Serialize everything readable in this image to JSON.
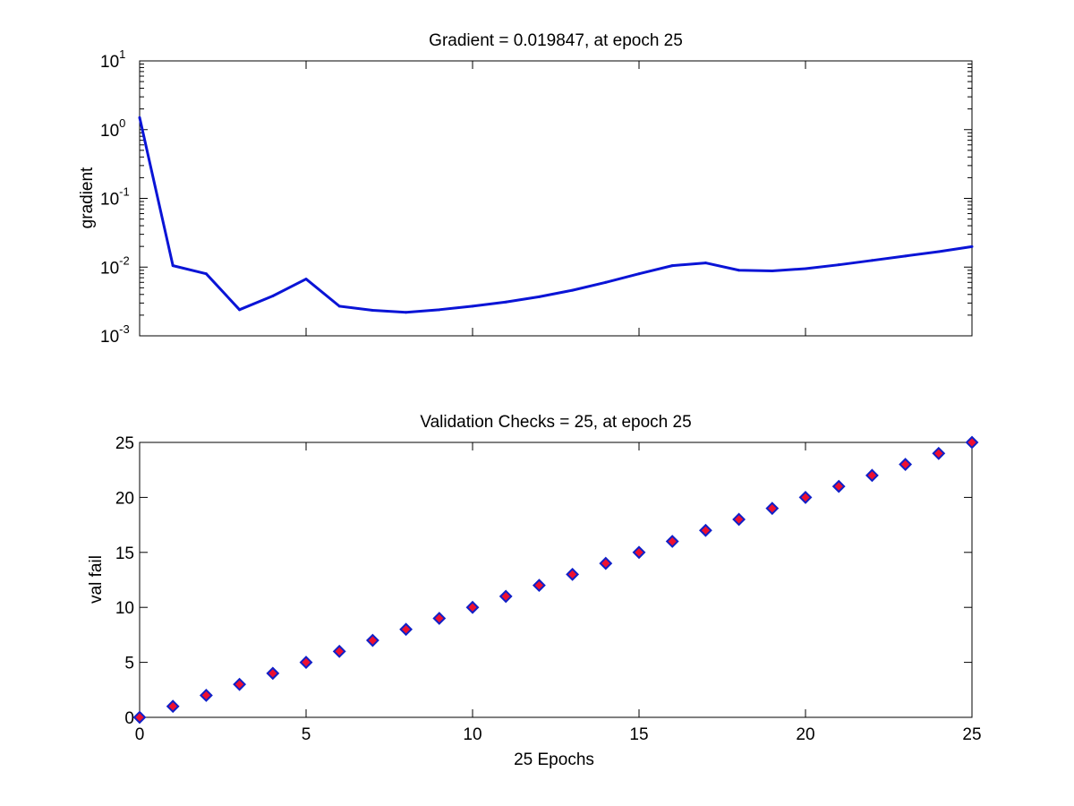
{
  "chart_data": [
    {
      "type": "line",
      "title": "Gradient = 0.019847, at epoch 25",
      "xlabel": "",
      "ylabel": "gradient",
      "xlim": [
        0,
        25
      ],
      "ylim": [
        0.001,
        10
      ],
      "yscale": "log",
      "x_ticks": [
        0,
        5,
        10,
        15,
        20
      ],
      "x_tick_labels_visible": false,
      "y_ticks": [
        {
          "base": "10",
          "exp": "-3"
        },
        {
          "base": "10",
          "exp": "-2"
        },
        {
          "base": "10",
          "exp": "-1"
        },
        {
          "base": "10",
          "exp": "0"
        },
        {
          "base": "10",
          "exp": "1"
        }
      ],
      "grid": false,
      "series": [
        {
          "color": "#0a14d6",
          "x": [
            0,
            1,
            2,
            3,
            4,
            5,
            6,
            7,
            8,
            9,
            10,
            11,
            12,
            13,
            14,
            15,
            16,
            17,
            18,
            19,
            20,
            21,
            22,
            23,
            24,
            25
          ],
          "y": [
            1.5,
            0.0105,
            0.008,
            0.0024,
            0.0038,
            0.0067,
            0.0027,
            0.00235,
            0.0022,
            0.0024,
            0.0027,
            0.0031,
            0.0037,
            0.0046,
            0.006,
            0.008,
            0.0105,
            0.0115,
            0.009,
            0.0088,
            0.0095,
            0.0108,
            0.0125,
            0.0145,
            0.0168,
            0.019847
          ]
        }
      ]
    },
    {
      "type": "scatter",
      "title": "Validation Checks = 25, at epoch 25",
      "xlabel": "25 Epochs",
      "ylabel": "val fail",
      "xlim": [
        0,
        25
      ],
      "ylim": [
        0,
        25
      ],
      "x_ticks": [
        0,
        5,
        10,
        15,
        20,
        25
      ],
      "y_ticks": [
        0,
        5,
        10,
        15,
        20,
        25
      ],
      "grid": false,
      "marker": "diamond",
      "marker_edge_color": "#1020c8",
      "marker_face_color": "#ee1030",
      "series": [
        {
          "x": [
            0,
            1,
            2,
            3,
            4,
            5,
            6,
            7,
            8,
            9,
            10,
            11,
            12,
            13,
            14,
            15,
            16,
            17,
            18,
            19,
            20,
            21,
            22,
            23,
            24,
            25
          ],
          "y": [
            0,
            1,
            2,
            3,
            4,
            5,
            6,
            7,
            8,
            9,
            10,
            11,
            12,
            13,
            14,
            15,
            16,
            17,
            18,
            19,
            20,
            21,
            22,
            23,
            24,
            25
          ]
        }
      ]
    }
  ]
}
